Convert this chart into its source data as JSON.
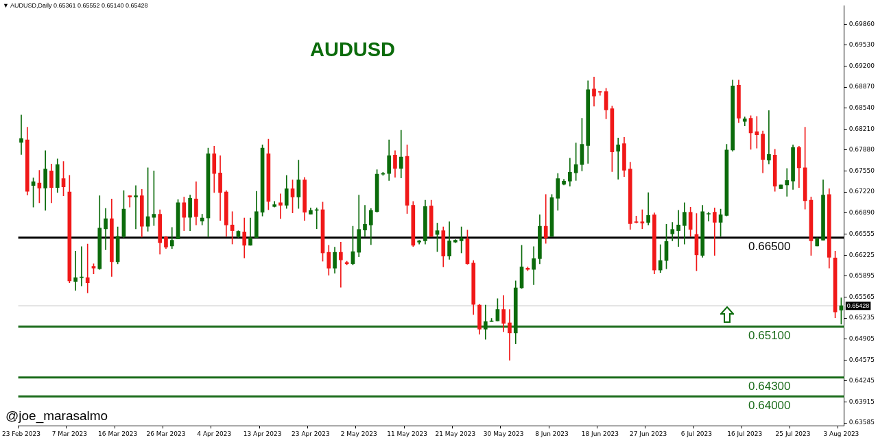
{
  "chart_data": {
    "type": "candlestick",
    "title": "AUDUSD",
    "subtitle": "▼ AUDUSD,Daily 0.65361 0.65552 0.65140 0.65428",
    "annotations": [
      "@joe_marasalmo"
    ],
    "categories": [
      "23 Feb 2023",
      null,
      null,
      null,
      null,
      null,
      null,
      null,
      "7 Mar 2023",
      null,
      null,
      null,
      null,
      null,
      null,
      null,
      "16 Mar 2023",
      null,
      null,
      null,
      null,
      null,
      null,
      null,
      "26 Mar 2023",
      null,
      null,
      null,
      null,
      null,
      null,
      null,
      "4 Apr 2023",
      null,
      null,
      null,
      null,
      null,
      null,
      null,
      "13 Apr 2023",
      null,
      null,
      null,
      null,
      null,
      null,
      null,
      "23 Apr 2023",
      null,
      null,
      null,
      null,
      null,
      null,
      null,
      "2 May 2023",
      null,
      null,
      null,
      null,
      null,
      null,
      null,
      "11 May 2023",
      null,
      null,
      null,
      null,
      null,
      null,
      null,
      "21 May 2023",
      null,
      null,
      null,
      null,
      null,
      null,
      null,
      "30 May 2023",
      null,
      null,
      null,
      null,
      null,
      null,
      null,
      "8 Jun 2023",
      null,
      null,
      null,
      null,
      null,
      null,
      null,
      "18 Jun 2023",
      null,
      null,
      null,
      null,
      null,
      null,
      null,
      "27 Jun 2023",
      null,
      null,
      null,
      null,
      null,
      null,
      null,
      "6 Jul 2023",
      null,
      null,
      null,
      null,
      null,
      null,
      null,
      "16 Jul 2023",
      null,
      null,
      null,
      null,
      null,
      null,
      null,
      "25 Jul 2023",
      null,
      null,
      null,
      null,
      null,
      null,
      null,
      "3 Aug 2023"
    ],
    "ohlc": [
      [
        0.68,
        0.6843,
        0.6781,
        0.6806
      ],
      [
        0.6804,
        0.6824,
        0.6717,
        0.6723
      ],
      [
        0.6732,
        0.6744,
        0.6698,
        0.6738
      ],
      [
        0.6736,
        0.6756,
        0.6705,
        0.6728
      ],
      [
        0.6728,
        0.6787,
        0.6693,
        0.6758
      ],
      [
        0.6755,
        0.6766,
        0.6705,
        0.6729
      ],
      [
        0.6729,
        0.6774,
        0.6721,
        0.6765
      ],
      [
        0.6743,
        0.677,
        0.6716,
        0.673
      ],
      [
        0.6722,
        0.6748,
        0.6579,
        0.6582
      ],
      [
        0.6581,
        0.6629,
        0.6567,
        0.6587
      ],
      [
        0.6587,
        0.6636,
        0.6574,
        0.6588
      ],
      [
        0.6587,
        0.664,
        0.6563,
        0.6579
      ],
      [
        0.6605,
        0.6609,
        0.6593,
        0.6602
      ],
      [
        0.6601,
        0.6716,
        0.66,
        0.6665
      ],
      [
        0.6664,
        0.6696,
        0.6631,
        0.668
      ],
      [
        0.668,
        0.6711,
        0.6589,
        0.6612
      ],
      [
        0.6612,
        0.6667,
        0.6609,
        0.6652
      ],
      [
        0.6652,
        0.6724,
        0.665,
        0.6695
      ],
      [
        0.6716,
        0.6716,
        0.6698,
        0.6714
      ],
      [
        0.6714,
        0.6732,
        0.6664,
        0.6716
      ],
      [
        0.6716,
        0.6726,
        0.6651,
        0.6668
      ],
      [
        0.6668,
        0.676,
        0.666,
        0.6683
      ],
      [
        0.6682,
        0.6755,
        0.6669,
        0.6687
      ],
      [
        0.6687,
        0.6694,
        0.6624,
        0.6642
      ],
      [
        0.6651,
        0.6652,
        0.6633,
        0.6635
      ],
      [
        0.6637,
        0.6666,
        0.6633,
        0.6646
      ],
      [
        0.6648,
        0.671,
        0.6648,
        0.6705
      ],
      [
        0.6705,
        0.6714,
        0.6661,
        0.6682
      ],
      [
        0.6682,
        0.6717,
        0.6661,
        0.6712
      ],
      [
        0.6711,
        0.6738,
        0.667,
        0.6683
      ],
      [
        0.6676,
        0.6687,
        0.667,
        0.6681
      ],
      [
        0.6681,
        0.6791,
        0.6651,
        0.6782
      ],
      [
        0.6782,
        0.6794,
        0.6721,
        0.6751
      ],
      [
        0.6752,
        0.6779,
        0.6677,
        0.6721
      ],
      [
        0.6722,
        0.6724,
        0.6652,
        0.667
      ],
      [
        0.667,
        0.6691,
        0.664,
        0.6661
      ],
      [
        0.6652,
        0.6661,
        0.665,
        0.666
      ],
      [
        0.6659,
        0.6681,
        0.6618,
        0.6638
      ],
      [
        0.6638,
        0.6681,
        0.6638,
        0.665
      ],
      [
        0.665,
        0.6723,
        0.665,
        0.6691
      ],
      [
        0.669,
        0.6796,
        0.6684,
        0.6791
      ],
      [
        0.6782,
        0.6805,
        0.6694,
        0.6707
      ],
      [
        0.6699,
        0.6707,
        0.6698,
        0.6702
      ],
      [
        0.6705,
        0.6719,
        0.668,
        0.6701
      ],
      [
        0.6701,
        0.6748,
        0.6696,
        0.6727
      ],
      [
        0.6727,
        0.6741,
        0.6689,
        0.6714
      ],
      [
        0.6714,
        0.6772,
        0.6696,
        0.6741
      ],
      [
        0.6741,
        0.6745,
        0.6677,
        0.669
      ],
      [
        0.6687,
        0.6697,
        0.6687,
        0.6693
      ],
      [
        0.6693,
        0.6697,
        0.6664,
        0.6694
      ],
      [
        0.6694,
        0.6706,
        0.6613,
        0.6626
      ],
      [
        0.6627,
        0.6638,
        0.6591,
        0.6602
      ],
      [
        0.6602,
        0.6635,
        0.6594,
        0.6627
      ],
      [
        0.6627,
        0.6643,
        0.6572,
        0.6615
      ],
      [
        0.6611,
        0.6613,
        0.6607,
        0.6609
      ],
      [
        0.6609,
        0.6668,
        0.6607,
        0.6628
      ],
      [
        0.6627,
        0.6717,
        0.662,
        0.6663
      ],
      [
        0.6662,
        0.6701,
        0.6652,
        0.6671
      ],
      [
        0.667,
        0.6696,
        0.6639,
        0.6693
      ],
      [
        0.6691,
        0.6757,
        0.669,
        0.675
      ],
      [
        0.675,
        0.6753,
        0.6748,
        0.6751
      ],
      [
        0.6751,
        0.6804,
        0.674,
        0.6779
      ],
      [
        0.678,
        0.6787,
        0.6745,
        0.6759
      ],
      [
        0.6759,
        0.6819,
        0.6744,
        0.6777
      ],
      [
        0.6778,
        0.6796,
        0.6688,
        0.6701
      ],
      [
        0.6701,
        0.6707,
        0.6636,
        0.6638
      ],
      [
        0.6643,
        0.6646,
        0.664,
        0.6645
      ],
      [
        0.6645,
        0.6709,
        0.664,
        0.6699
      ],
      [
        0.67,
        0.6709,
        0.6652,
        0.6652
      ],
      [
        0.6655,
        0.6673,
        0.6628,
        0.6661
      ],
      [
        0.6661,
        0.6667,
        0.6604,
        0.6621
      ],
      [
        0.6621,
        0.6675,
        0.6616,
        0.6645
      ],
      [
        0.6643,
        0.6647,
        0.6642,
        0.6646
      ],
      [
        0.6645,
        0.6667,
        0.6626,
        0.6649
      ],
      [
        0.6648,
        0.6662,
        0.6608,
        0.6609
      ],
      [
        0.661,
        0.6614,
        0.6529,
        0.6545
      ],
      [
        0.6544,
        0.6545,
        0.6498,
        0.6506
      ],
      [
        0.6506,
        0.6544,
        0.649,
        0.6518
      ],
      [
        0.6518,
        0.6523,
        0.6518,
        0.6519
      ],
      [
        0.6519,
        0.6554,
        0.6519,
        0.6537
      ],
      [
        0.6537,
        0.6559,
        0.6502,
        0.6515
      ],
      [
        0.6516,
        0.6537,
        0.6457,
        0.65
      ],
      [
        0.65,
        0.6582,
        0.6483,
        0.6571
      ],
      [
        0.6571,
        0.6638,
        0.657,
        0.6604
      ],
      [
        0.6602,
        0.6604,
        0.6598,
        0.66
      ],
      [
        0.66,
        0.6636,
        0.6576,
        0.6617
      ],
      [
        0.6617,
        0.6686,
        0.6609,
        0.6668
      ],
      [
        0.6668,
        0.6718,
        0.6641,
        0.665
      ],
      [
        0.6652,
        0.6718,
        0.6652,
        0.6713
      ],
      [
        0.6712,
        0.6751,
        0.6693,
        0.6743
      ],
      [
        0.6734,
        0.6742,
        0.6733,
        0.6739
      ],
      [
        0.6739,
        0.6775,
        0.6731,
        0.6753
      ],
      [
        0.6752,
        0.6799,
        0.674,
        0.6765
      ],
      [
        0.6765,
        0.6838,
        0.6755,
        0.6797
      ],
      [
        0.6795,
        0.6897,
        0.6767,
        0.6883
      ],
      [
        0.6884,
        0.6903,
        0.6857,
        0.6873
      ],
      [
        0.688,
        0.688,
        0.6874,
        0.6879
      ],
      [
        0.688,
        0.6885,
        0.6837,
        0.6851
      ],
      [
        0.6853,
        0.6857,
        0.6754,
        0.6785
      ],
      [
        0.6786,
        0.6807,
        0.6742,
        0.6796
      ],
      [
        0.6798,
        0.6808,
        0.6746,
        0.6756
      ],
      [
        0.6758,
        0.6769,
        0.6663,
        0.6672
      ],
      [
        0.6675,
        0.6684,
        0.6673,
        0.6674
      ],
      [
        0.6675,
        0.6694,
        0.6664,
        0.6673
      ],
      [
        0.6674,
        0.6721,
        0.667,
        0.6685
      ],
      [
        0.6686,
        0.6689,
        0.6593,
        0.6599
      ],
      [
        0.6599,
        0.6639,
        0.6595,
        0.6614
      ],
      [
        0.6614,
        0.6671,
        0.6601,
        0.6644
      ],
      [
        0.6656,
        0.6674,
        0.6645,
        0.6663
      ],
      [
        0.6661,
        0.6693,
        0.6636,
        0.667
      ],
      [
        0.6669,
        0.6705,
        0.664,
        0.669
      ],
      [
        0.669,
        0.6698,
        0.6652,
        0.6663
      ],
      [
        0.6655,
        0.6688,
        0.6598,
        0.6623
      ],
      [
        0.6622,
        0.6701,
        0.6619,
        0.6691
      ],
      [
        0.6687,
        0.669,
        0.6676,
        0.6688
      ],
      [
        0.669,
        0.6697,
        0.6622,
        0.6674
      ],
      [
        0.6674,
        0.6695,
        0.6652,
        0.6686
      ],
      [
        0.6685,
        0.6797,
        0.6684,
        0.6788
      ],
      [
        0.6788,
        0.6898,
        0.6786,
        0.6889
      ],
      [
        0.689,
        0.6898,
        0.6831,
        0.6838
      ],
      [
        0.6833,
        0.684,
        0.6826,
        0.6837
      ],
      [
        0.6838,
        0.6842,
        0.6789,
        0.6815
      ],
      [
        0.6817,
        0.6841,
        0.6791,
        0.6812
      ],
      [
        0.6813,
        0.6818,
        0.6752,
        0.6773
      ],
      [
        0.6772,
        0.685,
        0.6766,
        0.6781
      ],
      [
        0.678,
        0.6789,
        0.6723,
        0.6731
      ],
      [
        0.6727,
        0.6733,
        0.6727,
        0.6733
      ],
      [
        0.6733,
        0.6759,
        0.6715,
        0.674
      ],
      [
        0.6739,
        0.6796,
        0.6726,
        0.6792
      ],
      [
        0.6792,
        0.6794,
        0.6729,
        0.676
      ],
      [
        0.676,
        0.6824,
        0.6695,
        0.6708
      ],
      [
        0.6709,
        0.6714,
        0.6622,
        0.6645
      ],
      [
        0.6637,
        0.665,
        0.6637,
        0.6648
      ],
      [
        0.6646,
        0.6741,
        0.6646,
        0.6717
      ],
      [
        0.6718,
        0.6727,
        0.6602,
        0.6619
      ],
      [
        0.6618,
        0.6629,
        0.6524,
        0.6533
      ],
      [
        0.65361,
        0.65552,
        0.6514,
        0.65428
      ]
    ],
    "ylim": [
      0.6354,
      0.7015
    ],
    "yticks": [
      {
        "value": 0.63585,
        "label": "0.63585"
      },
      {
        "value": 0.63915,
        "label": "0.63915"
      },
      {
        "value": 0.64245,
        "label": "0.64245"
      },
      {
        "value": 0.64575,
        "label": "0.64575"
      },
      {
        "value": 0.64905,
        "label": "0.64905"
      },
      {
        "value": 0.65235,
        "label": "0.65235"
      },
      {
        "value": 0.65565,
        "label": "0.65565"
      },
      {
        "value": 0.65895,
        "label": "0.65895"
      },
      {
        "value": 0.66225,
        "label": "0.66225"
      },
      {
        "value": 0.66555,
        "label": "0.66555"
      },
      {
        "value": 0.6689,
        "label": "0.66890"
      },
      {
        "value": 0.6722,
        "label": "0.67220"
      },
      {
        "value": 0.6755,
        "label": "0.67550"
      },
      {
        "value": 0.6788,
        "label": "0.67880"
      },
      {
        "value": 0.6821,
        "label": "0.68210"
      },
      {
        "value": 0.6854,
        "label": "0.68540"
      },
      {
        "value": 0.6887,
        "label": "0.68870"
      },
      {
        "value": 0.692,
        "label": "0.69200"
      },
      {
        "value": 0.6953,
        "label": "0.69530"
      },
      {
        "value": 0.6986,
        "label": "0.69860"
      }
    ],
    "ref_lines": [
      {
        "axis": "y",
        "value": 0.665,
        "label": "0.66500",
        "color": "#000000"
      },
      {
        "axis": "y",
        "value": 0.651,
        "label": "0.65100",
        "color": "#1a6b1a"
      },
      {
        "axis": "y",
        "value": 0.643,
        "label": "0.64300",
        "color": "#1a6b1a"
      },
      {
        "axis": "y",
        "value": 0.64,
        "label": "0.64000",
        "color": "#1a6b1a"
      },
      {
        "axis": "y",
        "value": 0.65428,
        "label": "0.65428",
        "color": "#c0c0c0"
      }
    ]
  }
}
